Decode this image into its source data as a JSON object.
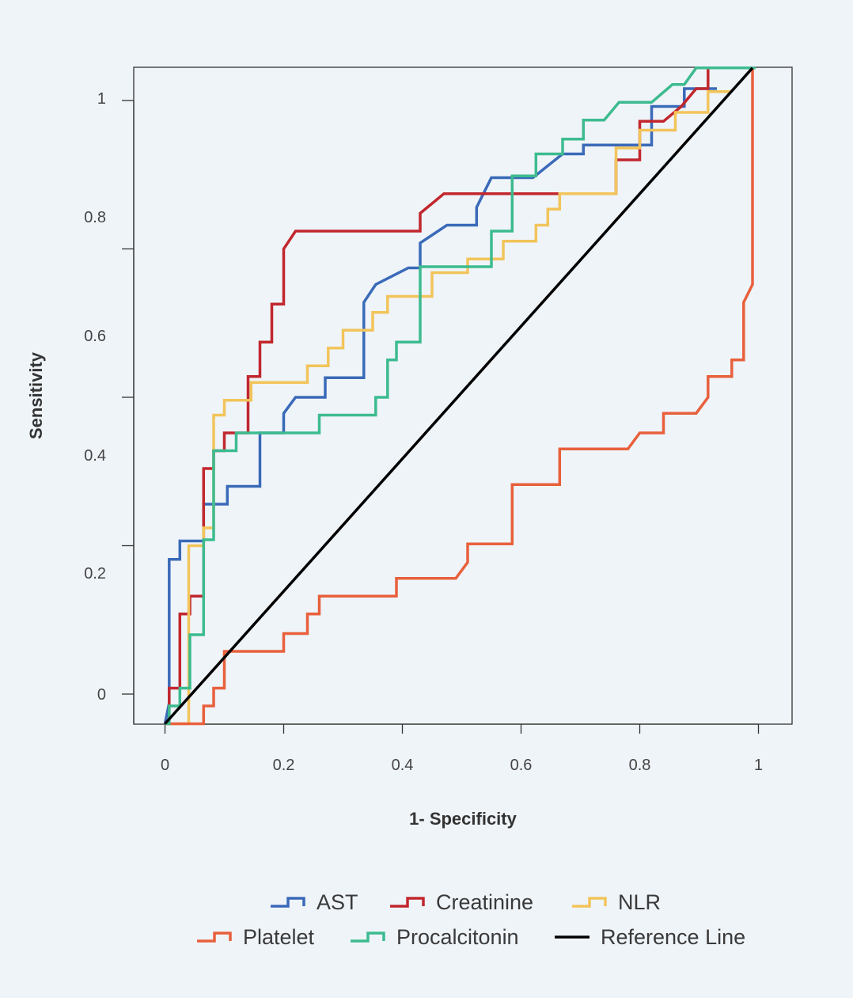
{
  "chart_data": {
    "type": "line",
    "xlabel": "1- Specificity",
    "ylabel": "Sensitivity",
    "x_ticks": [
      "0",
      "0.2",
      "0.4",
      "0.6",
      "0.8",
      "1"
    ],
    "y_ticks": [
      "0",
      "0.2",
      "0.4",
      "0.6",
      "0.8",
      "1"
    ],
    "series": [
      {
        "name": "AST",
        "color": "#3a6ab8",
        "points": [
          [
            0,
            -0.05
          ],
          [
            0.007,
            -0.015
          ],
          [
            0.007,
            0.227
          ],
          [
            0.025,
            0.227
          ],
          [
            0.025,
            0.258
          ],
          [
            0.065,
            0.258
          ],
          [
            0.065,
            0.32
          ],
          [
            0.105,
            0.32
          ],
          [
            0.105,
            0.35
          ],
          [
            0.16,
            0.35
          ],
          [
            0.16,
            0.44
          ],
          [
            0.2,
            0.44
          ],
          [
            0.2,
            0.473
          ],
          [
            0.22,
            0.5
          ],
          [
            0.27,
            0.5
          ],
          [
            0.27,
            0.533
          ],
          [
            0.335,
            0.533
          ],
          [
            0.335,
            0.66
          ],
          [
            0.355,
            0.69
          ],
          [
            0.41,
            0.718
          ],
          [
            0.43,
            0.718
          ],
          [
            0.43,
            0.76
          ],
          [
            0.475,
            0.79
          ],
          [
            0.525,
            0.79
          ],
          [
            0.525,
            0.82
          ],
          [
            0.55,
            0.87
          ],
          [
            0.62,
            0.87
          ],
          [
            0.67,
            0.91
          ],
          [
            0.705,
            0.91
          ],
          [
            0.705,
            0.925
          ],
          [
            0.82,
            0.925
          ],
          [
            0.82,
            0.99
          ],
          [
            0.875,
            0.99
          ],
          [
            0.875,
            1.02
          ],
          [
            0.93,
            1.02
          ]
        ]
      },
      {
        "name": "Creatinine",
        "color": "#c1272d",
        "points": [
          [
            0,
            -0.05
          ],
          [
            0.007,
            -0.05
          ],
          [
            0.007,
            0.01
          ],
          [
            0.025,
            0.01
          ],
          [
            0.025,
            0.135
          ],
          [
            0.042,
            0.135
          ],
          [
            0.042,
            0.165
          ],
          [
            0.065,
            0.165
          ],
          [
            0.065,
            0.38
          ],
          [
            0.082,
            0.38
          ],
          [
            0.082,
            0.41
          ],
          [
            0.1,
            0.41
          ],
          [
            0.1,
            0.44
          ],
          [
            0.14,
            0.44
          ],
          [
            0.14,
            0.535
          ],
          [
            0.16,
            0.535
          ],
          [
            0.16,
            0.593
          ],
          [
            0.18,
            0.593
          ],
          [
            0.18,
            0.657
          ],
          [
            0.2,
            0.657
          ],
          [
            0.2,
            0.75
          ],
          [
            0.22,
            0.78
          ],
          [
            0.43,
            0.78
          ],
          [
            0.43,
            0.81
          ],
          [
            0.47,
            0.843
          ],
          [
            0.76,
            0.843
          ],
          [
            0.76,
            0.9
          ],
          [
            0.8,
            0.9
          ],
          [
            0.8,
            0.965
          ],
          [
            0.84,
            0.965
          ],
          [
            0.87,
            0.99
          ],
          [
            0.895,
            1.02
          ],
          [
            0.915,
            1.02
          ],
          [
            0.915,
            1.055
          ],
          [
            0.955,
            1.055
          ]
        ]
      },
      {
        "name": "NLR",
        "color": "#f2c45a",
        "points": [
          [
            0,
            -0.05
          ],
          [
            0.04,
            -0.05
          ],
          [
            0.04,
            0.25
          ],
          [
            0.065,
            0.25
          ],
          [
            0.065,
            0.28
          ],
          [
            0.082,
            0.28
          ],
          [
            0.082,
            0.47
          ],
          [
            0.1,
            0.47
          ],
          [
            0.1,
            0.495
          ],
          [
            0.145,
            0.495
          ],
          [
            0.145,
            0.525
          ],
          [
            0.24,
            0.525
          ],
          [
            0.24,
            0.553
          ],
          [
            0.275,
            0.553
          ],
          [
            0.275,
            0.583
          ],
          [
            0.3,
            0.583
          ],
          [
            0.3,
            0.613
          ],
          [
            0.35,
            0.613
          ],
          [
            0.35,
            0.643
          ],
          [
            0.375,
            0.643
          ],
          [
            0.375,
            0.67
          ],
          [
            0.45,
            0.67
          ],
          [
            0.45,
            0.71
          ],
          [
            0.51,
            0.71
          ],
          [
            0.51,
            0.733
          ],
          [
            0.57,
            0.733
          ],
          [
            0.57,
            0.763
          ],
          [
            0.625,
            0.763
          ],
          [
            0.625,
            0.79
          ],
          [
            0.645,
            0.79
          ],
          [
            0.645,
            0.817
          ],
          [
            0.665,
            0.817
          ],
          [
            0.665,
            0.843
          ],
          [
            0.76,
            0.843
          ],
          [
            0.76,
            0.92
          ],
          [
            0.8,
            0.92
          ],
          [
            0.8,
            0.95
          ],
          [
            0.86,
            0.95
          ],
          [
            0.86,
            0.98
          ],
          [
            0.915,
            0.98
          ],
          [
            0.915,
            1.015
          ],
          [
            0.955,
            1.015
          ]
        ]
      },
      {
        "name": "Platelet",
        "color": "#e8603c",
        "points": [
          [
            0,
            -0.05
          ],
          [
            0.065,
            -0.05
          ],
          [
            0.065,
            -0.02
          ],
          [
            0.082,
            -0.02
          ],
          [
            0.082,
            0.01
          ],
          [
            0.1,
            0.01
          ],
          [
            0.1,
            0.072
          ],
          [
            0.2,
            0.072
          ],
          [
            0.2,
            0.102
          ],
          [
            0.24,
            0.102
          ],
          [
            0.24,
            0.135
          ],
          [
            0.26,
            0.135
          ],
          [
            0.26,
            0.165
          ],
          [
            0.39,
            0.165
          ],
          [
            0.39,
            0.195
          ],
          [
            0.49,
            0.195
          ],
          [
            0.51,
            0.222
          ],
          [
            0.51,
            0.253
          ],
          [
            0.585,
            0.253
          ],
          [
            0.585,
            0.353
          ],
          [
            0.665,
            0.353
          ],
          [
            0.665,
            0.413
          ],
          [
            0.78,
            0.413
          ],
          [
            0.8,
            0.44
          ],
          [
            0.84,
            0.44
          ],
          [
            0.84,
            0.473
          ],
          [
            0.895,
            0.473
          ],
          [
            0.915,
            0.5
          ],
          [
            0.915,
            0.535
          ],
          [
            0.955,
            0.535
          ],
          [
            0.955,
            0.563
          ],
          [
            0.975,
            0.563
          ],
          [
            0.975,
            0.66
          ],
          [
            0.99,
            0.69
          ],
          [
            0.99,
            1.055
          ]
        ]
      },
      {
        "name": "Procalcitonin",
        "color": "#3dbb8f",
        "points": [
          [
            0,
            -0.05
          ],
          [
            0.007,
            -0.05
          ],
          [
            0.007,
            -0.02
          ],
          [
            0.025,
            -0.02
          ],
          [
            0.025,
            0.01
          ],
          [
            0.042,
            0.01
          ],
          [
            0.042,
            0.1
          ],
          [
            0.065,
            0.1
          ],
          [
            0.065,
            0.26
          ],
          [
            0.082,
            0.26
          ],
          [
            0.082,
            0.41
          ],
          [
            0.12,
            0.41
          ],
          [
            0.12,
            0.44
          ],
          [
            0.26,
            0.44
          ],
          [
            0.26,
            0.47
          ],
          [
            0.355,
            0.47
          ],
          [
            0.355,
            0.5
          ],
          [
            0.375,
            0.5
          ],
          [
            0.375,
            0.563
          ],
          [
            0.39,
            0.563
          ],
          [
            0.39,
            0.593
          ],
          [
            0.43,
            0.593
          ],
          [
            0.43,
            0.72
          ],
          [
            0.55,
            0.72
          ],
          [
            0.55,
            0.78
          ],
          [
            0.585,
            0.78
          ],
          [
            0.585,
            0.873
          ],
          [
            0.625,
            0.873
          ],
          [
            0.625,
            0.91
          ],
          [
            0.67,
            0.91
          ],
          [
            0.67,
            0.935
          ],
          [
            0.705,
            0.935
          ],
          [
            0.705,
            0.967
          ],
          [
            0.74,
            0.967
          ],
          [
            0.765,
            0.997
          ],
          [
            0.82,
            0.997
          ],
          [
            0.855,
            1.027
          ],
          [
            0.875,
            1.027
          ],
          [
            0.895,
            1.055
          ],
          [
            0.995,
            1.055
          ]
        ]
      },
      {
        "name": "Reference Line",
        "color": "#000000",
        "points": [
          [
            0,
            -0.05
          ],
          [
            0.99,
            1.055
          ]
        ]
      }
    ]
  }
}
